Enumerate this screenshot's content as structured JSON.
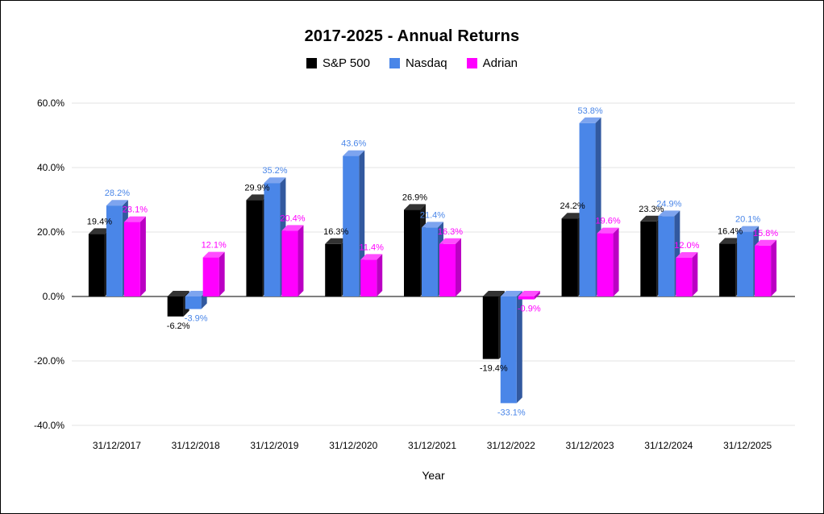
{
  "chart_data": {
    "type": "bar",
    "title": "2017-2025 - Annual Returns",
    "xlabel": "Year",
    "legend_position": "top",
    "grid": true,
    "background_color": "#ffffff",
    "gridline_color": "#e3e3e3",
    "zero_line_color": "#7f7f7f",
    "categories": [
      "31/12/2017",
      "31/12/2018",
      "31/12/2019",
      "31/12/2020",
      "31/12/2021",
      "31/12/2022",
      "31/12/2023",
      "31/12/2024",
      "31/12/2025"
    ],
    "series": [
      {
        "name": "S&P 500",
        "color": "#000000",
        "top_color": "#333333",
        "side_color": "#1a1a1a",
        "values": [
          19.4,
          -6.2,
          29.9,
          16.3,
          26.9,
          -19.4,
          24.2,
          23.3,
          16.4
        ],
        "labels": [
          "19.4%",
          "-6.2%",
          "29.9%",
          "16.3%",
          "26.9%",
          "-19.4%",
          "24.2%",
          "23.3%",
          "16.4%"
        ]
      },
      {
        "name": "Nasdaq",
        "color": "#4a86e8",
        "top_color": "#7da4ef",
        "side_color": "#32599f",
        "values": [
          28.2,
          -3.9,
          35.2,
          43.6,
          21.4,
          -33.1,
          53.8,
          24.9,
          20.1
        ],
        "labels": [
          "28.2%",
          "-3.9%",
          "35.2%",
          "43.6%",
          "21.4%",
          "-33.1%",
          "53.8%",
          "24.9%",
          "20.1%"
        ]
      },
      {
        "name": "Adrian",
        "color": "#ff00ff",
        "top_color": "#ff4dff",
        "side_color": "#bb00c4",
        "values": [
          23.1,
          12.1,
          20.4,
          11.4,
          16.3,
          -0.9,
          19.6,
          12.0,
          15.8
        ],
        "labels": [
          "23.1%",
          "12.1%",
          "20.4%",
          "11.4%",
          "16.3%",
          "-0.9%",
          "19.6%",
          "12.0%",
          "15.8%"
        ]
      }
    ],
    "y_axis": {
      "min": -40,
      "max": 60,
      "ticks": [
        60,
        40,
        20,
        0,
        -20,
        -40
      ],
      "tick_labels": [
        "60.0%",
        "40.0%",
        "20.0%",
        "0.0%",
        "-20.0%",
        "-40.0%"
      ]
    }
  }
}
